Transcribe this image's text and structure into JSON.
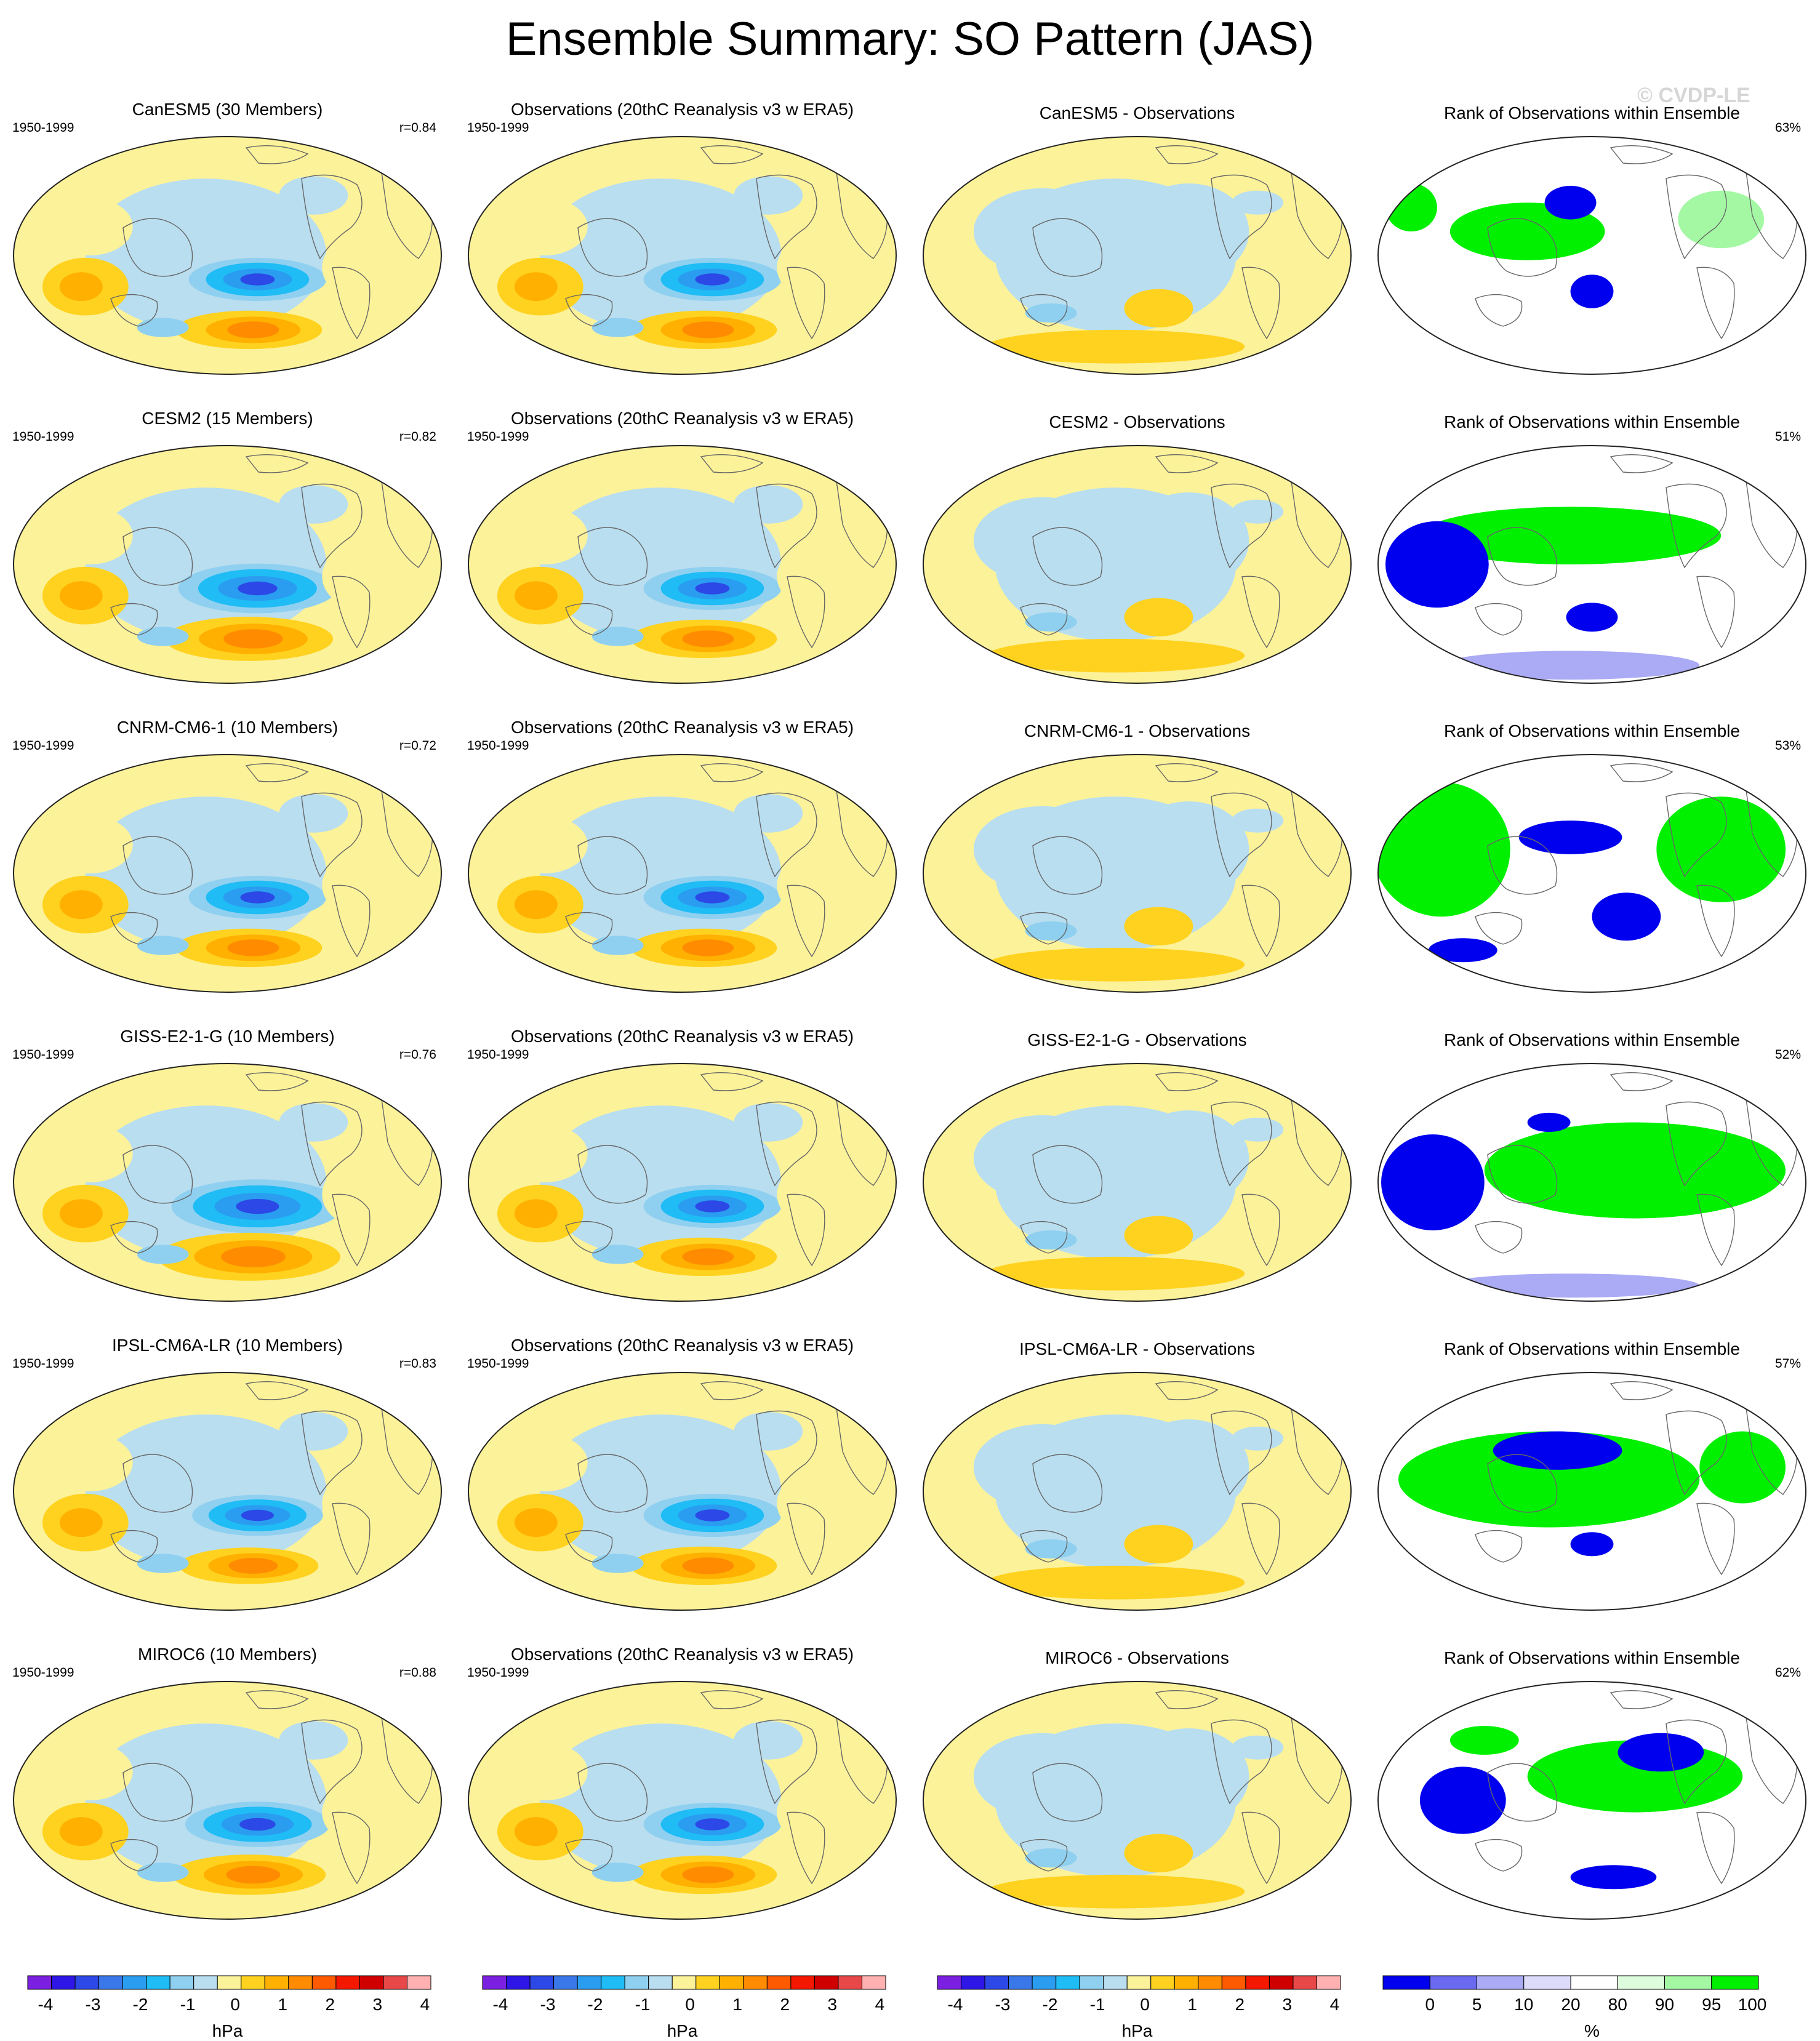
{
  "title": "Ensemble Summary: SO Pattern (JAS)",
  "watermark": "© CVDP-LE",
  "rows": [
    {
      "model_title": "CanESM5 (30 Members)",
      "period": "1950-1999",
      "corr": "r=0.84",
      "obs_title": "Observations (20thC Reanalysis v3 w ERA5)",
      "obs_period": "1950-1999",
      "diff_title": "CanESM5 - Observations",
      "rank_title": "Rank of Observations within Ensemble",
      "rank_pct": "63%"
    },
    {
      "model_title": "CESM2 (15 Members)",
      "period": "1950-1999",
      "corr": "r=0.82",
      "obs_title": "Observations (20thC Reanalysis v3 w ERA5)",
      "obs_period": "1950-1999",
      "diff_title": "CESM2 - Observations",
      "rank_title": "Rank of Observations within Ensemble",
      "rank_pct": "51%"
    },
    {
      "model_title": "CNRM-CM6-1 (10 Members)",
      "period": "1950-1999",
      "corr": "r=0.72",
      "obs_title": "Observations (20thC Reanalysis v3 w ERA5)",
      "obs_period": "1950-1999",
      "diff_title": "CNRM-CM6-1 - Observations",
      "rank_title": "Rank of Observations within Ensemble",
      "rank_pct": "53%"
    },
    {
      "model_title": "GISS-E2-1-G (10 Members)",
      "period": "1950-1999",
      "corr": "r=0.76",
      "obs_title": "Observations (20thC Reanalysis v3 w ERA5)",
      "obs_period": "1950-1999",
      "diff_title": "GISS-E2-1-G - Observations",
      "rank_title": "Rank of Observations within Ensemble",
      "rank_pct": "52%"
    },
    {
      "model_title": "IPSL-CM6A-LR (10 Members)",
      "period": "1950-1999",
      "corr": "r=0.83",
      "obs_title": "Observations (20thC Reanalysis v3 w ERA5)",
      "obs_period": "1950-1999",
      "diff_title": "IPSL-CM6A-LR - Observations",
      "rank_title": "Rank of Observations within Ensemble",
      "rank_pct": "57%"
    },
    {
      "model_title": "MIROC6 (10 Members)",
      "period": "1950-1999",
      "corr": "r=0.88",
      "obs_title": "Observations (20thC Reanalysis v3 w ERA5)",
      "obs_period": "1950-1999",
      "diff_title": "MIROC6 - Observations",
      "rank_title": "Rank of Observations within Ensemble",
      "rank_pct": "62%"
    }
  ],
  "colorbars": {
    "hpa": {
      "unit": "hPa",
      "ticks": [
        "-4",
        "-3",
        "-2",
        "-1",
        "0",
        "1",
        "2",
        "3",
        "4"
      ],
      "colors": [
        "#7b1fe0",
        "#2d16e6",
        "#2c48e6",
        "#3a78ea",
        "#2a9df0",
        "#1fbcf5",
        "#8fd0f0",
        "#b9def0",
        "#fcf29a",
        "#ffd21f",
        "#ffb000",
        "#ff8c00",
        "#ff5a00",
        "#f41800",
        "#d00000",
        "#e84848",
        "#ffb0b0"
      ]
    },
    "rank": {
      "unit": "%",
      "ticks": [
        "0",
        "5",
        "10",
        "20",
        "80",
        "90",
        "95",
        "100"
      ],
      "colors": [
        "#0000ee",
        "#6a6af0",
        "#aaaaf5",
        "#dcdcfa",
        "#ffffff",
        "#dcfcdc",
        "#a4f8a4",
        "#00f000"
      ]
    }
  },
  "palette": {
    "land_outline": "#666666",
    "map_border": "#222222",
    "pos_light": "#fcf29a",
    "pos_mid": "#ffd21f",
    "pos_strong": "#ffb000",
    "pos_stronger": "#ff8c00",
    "pos_max": "#e01800",
    "neg_light": "#b9def0",
    "neg_mid": "#8fd0f0",
    "neg_strong": "#1fbcf5",
    "neg_stronger": "#2a9df0",
    "neg_max": "#2c48e6",
    "rank_low": "#0000ee",
    "rank_mid_low": "#aaaaf5",
    "rank_high": "#00f000",
    "rank_mid_high": "#a4f8a4"
  }
}
